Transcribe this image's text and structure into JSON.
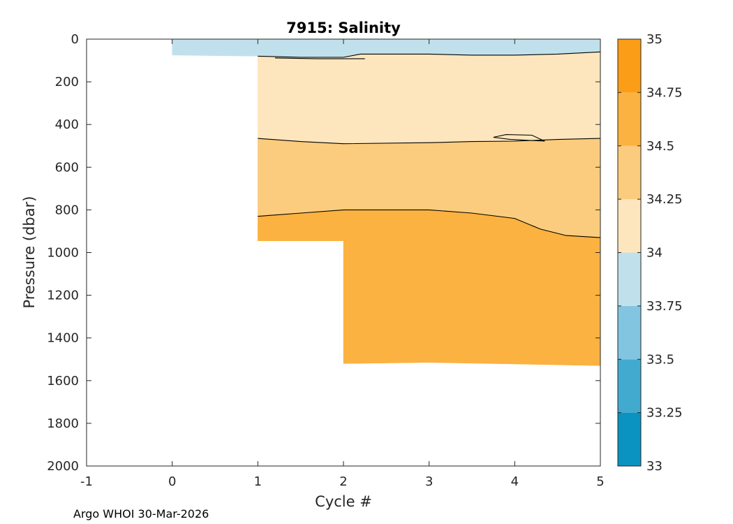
{
  "chart_data": {
    "type": "contour",
    "title": "7915:  Salinity",
    "xlabel": "Cycle #",
    "ylabel": "Pressure (dbar)",
    "xlim": [
      -1,
      5
    ],
    "ylim": [
      2000,
      0
    ],
    "y_reversed": true,
    "x_ticks": [
      "-1",
      "0",
      "1",
      "2",
      "3",
      "4",
      "5"
    ],
    "y_ticks": [
      "0",
      "200",
      "400",
      "600",
      "800",
      "1000",
      "1200",
      "1400",
      "1600",
      "1800",
      "2000"
    ],
    "colorbar": {
      "range": [
        33,
        35
      ],
      "levels": [
        33,
        33.25,
        33.5,
        33.75,
        34,
        34.25,
        34.5,
        34.75,
        35
      ],
      "tick_labels": [
        "33",
        "33.25",
        "33.5",
        "33.75",
        "34",
        "34.25",
        "34.5",
        "34.75",
        "35"
      ],
      "colors": [
        "#0a92c0",
        "#43aacf",
        "#82c5e0",
        "#c0e1ec",
        "#fde6bd",
        "#fbcc7d",
        "#fbb240",
        "#fb9d17"
      ]
    },
    "regions": [
      {
        "name": "salinity 33.75–34",
        "color": "#c0e1ec",
        "top": [
          [
            0,
            0
          ],
          [
            5,
            0
          ]
        ],
        "bottom": [
          [
            0,
            75
          ],
          [
            1,
            80
          ],
          [
            1.5,
            85
          ],
          [
            2,
            85
          ],
          [
            2.2,
            70
          ],
          [
            3,
            70
          ],
          [
            3.5,
            75
          ],
          [
            4,
            75
          ],
          [
            4.5,
            70
          ],
          [
            5,
            60
          ]
        ]
      },
      {
        "name": "salinity 34–34.25",
        "color": "#fde6bd",
        "top": [
          [
            1,
            80
          ],
          [
            1.5,
            85
          ],
          [
            2,
            85
          ],
          [
            2.2,
            70
          ],
          [
            3,
            70
          ],
          [
            3.5,
            75
          ],
          [
            4,
            75
          ],
          [
            4.5,
            70
          ],
          [
            5,
            60
          ]
        ],
        "bottom": [
          [
            1,
            465
          ],
          [
            1.5,
            480
          ],
          [
            2,
            490
          ],
          [
            3,
            485
          ],
          [
            3.5,
            480
          ],
          [
            4,
            478
          ],
          [
            4.5,
            470
          ],
          [
            5,
            465
          ]
        ]
      },
      {
        "name": "salinity 34.25–34.5",
        "color": "#fbcc7d",
        "top": [
          [
            1,
            465
          ],
          [
            1.5,
            480
          ],
          [
            2,
            490
          ],
          [
            3,
            485
          ],
          [
            3.5,
            480
          ],
          [
            4,
            478
          ],
          [
            4.5,
            470
          ],
          [
            5,
            465
          ]
        ],
        "bottom": [
          [
            1,
            830
          ],
          [
            1.5,
            815
          ],
          [
            2,
            800
          ],
          [
            3,
            800
          ],
          [
            3.5,
            815
          ],
          [
            4,
            840
          ],
          [
            4.3,
            890
          ],
          [
            4.6,
            920
          ],
          [
            5,
            930
          ]
        ]
      },
      {
        "name": "salinity 34.5–34.75",
        "color": "#fbb240",
        "top": [
          [
            1,
            830
          ],
          [
            1.5,
            815
          ],
          [
            2,
            800
          ],
          [
            3,
            800
          ],
          [
            3.5,
            815
          ],
          [
            4,
            840
          ],
          [
            4.3,
            890
          ],
          [
            4.6,
            920
          ],
          [
            5,
            930
          ]
        ],
        "bottom": [
          [
            1,
            945
          ],
          [
            2,
            945
          ],
          [
            2,
            1520
          ],
          [
            3,
            1515
          ],
          [
            4,
            1522
          ],
          [
            5,
            1530
          ]
        ]
      }
    ],
    "contour_lines": [
      {
        "level": 34,
        "points": [
          [
            1,
            80
          ],
          [
            1.5,
            85
          ],
          [
            2,
            85
          ],
          [
            2.2,
            70
          ],
          [
            3,
            70
          ],
          [
            3.5,
            75
          ],
          [
            4,
            75
          ],
          [
            4.5,
            70
          ],
          [
            5,
            60
          ]
        ]
      },
      {
        "level": 34,
        "points": [
          [
            1.2,
            88
          ],
          [
            1.7,
            92
          ],
          [
            2.25,
            92
          ]
        ]
      },
      {
        "level": 34.25,
        "points": [
          [
            1,
            465
          ],
          [
            1.5,
            480
          ],
          [
            2,
            490
          ],
          [
            3,
            485
          ],
          [
            3.5,
            480
          ],
          [
            4,
            478
          ],
          [
            4.5,
            470
          ],
          [
            5,
            465
          ]
        ]
      },
      {
        "level": 34.25,
        "points": [
          [
            3.75,
            460
          ],
          [
            3.9,
            447
          ],
          [
            4.2,
            450
          ],
          [
            4.35,
            478
          ],
          [
            3.95,
            470
          ],
          [
            3.75,
            460
          ]
        ]
      },
      {
        "level": 34.5,
        "points": [
          [
            1,
            830
          ],
          [
            1.5,
            815
          ],
          [
            2,
            800
          ],
          [
            3,
            800
          ],
          [
            3.5,
            815
          ],
          [
            4,
            840
          ],
          [
            4.3,
            890
          ],
          [
            4.6,
            920
          ],
          [
            5,
            930
          ]
        ]
      }
    ]
  },
  "footer": {
    "text": "Argo WHOI 30-Mar-2026"
  }
}
